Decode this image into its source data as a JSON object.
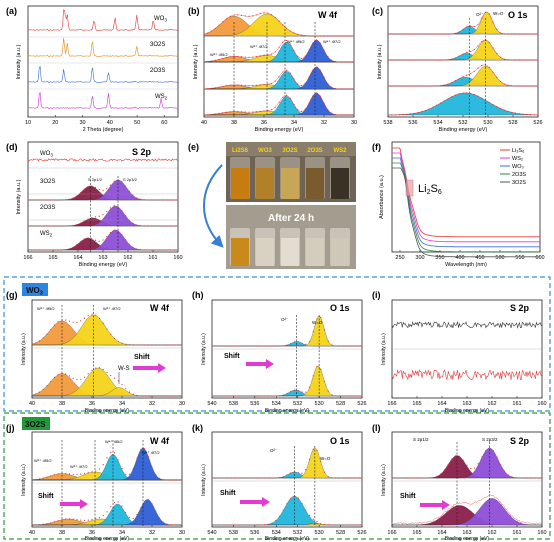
{
  "colors": {
    "orange": "#f39a3c",
    "yellow": "#f5d31b",
    "cyan": "#21b7dd",
    "blue": "#2f5fd6",
    "purple": "#8f4fd8",
    "maroon": "#8c1f4a",
    "magenta": "#e13bd1",
    "red": "#e23a3a",
    "wo3_badge": "#2b86e0",
    "o2s_badge": "#1e9a3b",
    "dashed_blue": "#3a8fd6",
    "dashed_green": "#2f9a3e"
  },
  "panels": {
    "a": {
      "tag": "(a)",
      "xlabel": "2 Theta (degree)",
      "ylabel": "Intensity (a.u.)",
      "ticks": [
        "10",
        "20",
        "30",
        "40",
        "50",
        "60"
      ]
    },
    "b": {
      "tag": "(b)",
      "title": "W 4f",
      "xlabel": "Binding energy (eV)",
      "ylabel": "Intensity (a.u.)",
      "ticks": [
        "40",
        "38",
        "36",
        "34",
        "32",
        "30"
      ],
      "ann_w4f52": "W⁶⁺ 4f5/2",
      "ann_w4f72": "W⁶⁺ 4f7/2",
      "ann_w4f52b": "W⁴⁺ 4f5/2",
      "ann_w4f72b": "W⁴⁺ 4f7/2"
    },
    "c": {
      "tag": "(c)",
      "title": "O 1s",
      "xlabel": "Binding energy (eV)",
      "ylabel": "Intensity (a.u.)",
      "ticks": [
        "538",
        "536",
        "534",
        "532",
        "530",
        "528",
        "526"
      ],
      "ann_o2": "O²⁻",
      "ann_wo": "W=O"
    },
    "d": {
      "tag": "(d)",
      "title": "S 2p",
      "xlabel": "Binding energy (eV)",
      "ylabel": "Intensity (a.u.)",
      "ticks": [
        "166",
        "165",
        "164",
        "163",
        "162",
        "161",
        "160"
      ],
      "ann_s12": "S 2p1/2",
      "ann_s32": "S 2p3/2"
    },
    "e": {
      "tag": "(e)",
      "top_labels": [
        "Li2S6",
        "WO3",
        "3O2S",
        "2O3S",
        "WS2"
      ],
      "bottom_label": "After 24 h"
    },
    "f": {
      "tag": "(f)",
      "xlabel": "Wavelength (nm)",
      "ylabel": "Absorbance (a.u.)",
      "ticks": [
        "250",
        "300",
        "350",
        "400",
        "450",
        "500",
        "550",
        "600"
      ],
      "annotation": "Li2S6"
    },
    "g": {
      "tag": "(g)",
      "title": "W 4f",
      "badge": "WO3",
      "xlabel": "Binding energy (eV)",
      "ylabel": "Intensity (a.u.)",
      "ticks": [
        "40",
        "38",
        "36",
        "34",
        "32",
        "30"
      ],
      "ann_a": "W⁶⁺ 4f5/2",
      "ann_b": "W⁶⁺ 4f7/2",
      "ann_ws": "W-S",
      "shift": "Shift"
    },
    "h": {
      "tag": "(h)",
      "title": "O 1s",
      "xlabel": "Binding energy (eV)",
      "ylabel": "Intensity (a.u.)",
      "ticks": [
        "540",
        "538",
        "536",
        "534",
        "532",
        "530",
        "528",
        "526"
      ],
      "ann_o2": "O²⁻",
      "ann_wo": "W=O",
      "shift": "Shift"
    },
    "i": {
      "tag": "(i)",
      "title": "S 2p",
      "xlabel": "Binding energy (eV)",
      "ylabel": "Intensity (a.u.)",
      "ticks": [
        "166",
        "165",
        "164",
        "163",
        "162",
        "161",
        "160"
      ]
    },
    "j": {
      "tag": "(j)",
      "title": "W 4f",
      "badge": "3O2S",
      "xlabel": "Binding energy (eV)",
      "ylabel": "Intensity (a.u.)",
      "ticks": [
        "40",
        "38",
        "36",
        "34",
        "32",
        "30"
      ],
      "ann_a": "W⁶⁺ 4f5/2",
      "ann_b": "W⁶⁺ 4f7/2",
      "ann_c": "W⁴⁺ 4f5/2",
      "ann_d": "W⁴⁺ 4f7/2",
      "shift": "Shift"
    },
    "k": {
      "tag": "(k)",
      "title": "O 1s",
      "xlabel": "Binding energy (eV)",
      "ylabel": "Intensity (a.u.)",
      "ticks": [
        "540",
        "538",
        "536",
        "534",
        "532",
        "530",
        "528",
        "526"
      ],
      "ann_o2": "O²⁻",
      "ann_wo": "W=O",
      "shift": "Shift"
    },
    "l": {
      "tag": "(l)",
      "title": "S 2p",
      "xlabel": "Binding energy (eV)",
      "ylabel": "Intensity (a.u.)",
      "ticks": [
        "166",
        "165",
        "164",
        "163",
        "162",
        "161",
        "160"
      ],
      "ann_s12": "S 2p1/2",
      "ann_s32": "S 2p3/2",
      "shift": "Shift"
    }
  },
  "chart_data": [
    {
      "type": "line",
      "panel": "a",
      "xlabel": "2 Theta (degree)",
      "ylabel": "Intensity (a.u.)",
      "xlim": [
        10,
        65
      ],
      "series": [
        {
          "name": "WO3",
          "peaks": [
            23.1,
            23.6,
            24.4,
            34.2,
            41.9,
            49.9,
            55.9
          ]
        },
        {
          "name": "3O2S",
          "peaks": [
            23.1,
            24.4,
            33.6,
            49.9
          ]
        },
        {
          "name": "2O3S",
          "peaks": [
            14.3,
            23.1,
            33.6,
            39.5
          ]
        },
        {
          "name": "WS2",
          "peaks": [
            14.3,
            33.6,
            39.5,
            58.8
          ]
        }
      ]
    },
    {
      "type": "line",
      "panel": "b",
      "title": "W 4f",
      "xlabel": "Binding energy (eV)",
      "ylabel": "Intensity (a.u.)",
      "xlim": [
        40,
        30
      ],
      "peaks_eV": [
        38.0,
        35.8,
        34.6,
        32.6
      ]
    },
    {
      "type": "line",
      "panel": "c",
      "title": "O 1s",
      "xlabel": "Binding energy (eV)",
      "ylabel": "Intensity (a.u.)",
      "xlim": [
        538,
        526
      ],
      "peaks_eV": [
        531.5,
        530.2
      ]
    },
    {
      "type": "line",
      "panel": "d",
      "title": "S 2p",
      "xlabel": "Binding energy (eV)",
      "ylabel": "Intensity (a.u.)",
      "xlim": [
        166,
        160
      ],
      "series": [
        {
          "name": "WO3"
        },
        {
          "name": "3O2S"
        },
        {
          "name": "2O3S"
        },
        {
          "name": "WS2"
        }
      ],
      "peaks_eV": [
        163.5,
        162.4
      ]
    },
    {
      "type": "line",
      "panel": "f",
      "xlabel": "Wavelength (nm)",
      "ylabel": "Absorbance (a.u.)",
      "xlim": [
        230,
        600
      ],
      "series": [
        {
          "name": "Li2S6"
        },
        {
          "name": "WS2"
        },
        {
          "name": "WO3"
        },
        {
          "name": "2O3S"
        },
        {
          "name": "3O2S"
        }
      ]
    },
    {
      "type": "line",
      "panel": "g",
      "title": "W 4f",
      "xlabel": "Binding energy (eV)",
      "xlim": [
        40,
        30
      ],
      "peaks_eV": [
        38.0,
        35.9
      ]
    },
    {
      "type": "line",
      "panel": "h",
      "title": "O 1s",
      "xlabel": "Binding energy (eV)",
      "xlim": [
        540,
        526
      ],
      "peaks_eV": [
        532.1,
        530.0
      ]
    },
    {
      "type": "line",
      "panel": "i",
      "title": "S 2p",
      "xlabel": "Binding energy (eV)",
      "xlim": [
        166,
        160
      ]
    },
    {
      "type": "line",
      "panel": "j",
      "title": "W 4f",
      "xlabel": "Binding energy (eV)",
      "xlim": [
        40,
        30
      ],
      "peaks_eV": [
        38.0,
        35.8,
        34.6,
        32.6
      ]
    },
    {
      "type": "line",
      "panel": "k",
      "title": "O 1s",
      "xlabel": "Binding energy (eV)",
      "xlim": [
        540,
        526
      ],
      "peaks_eV": [
        532.3,
        530.4
      ]
    },
    {
      "type": "line",
      "panel": "l",
      "title": "S 2p",
      "xlabel": "Binding energy (eV)",
      "xlim": [
        166,
        160
      ],
      "peaks_eV": [
        163.4,
        162.1
      ]
    }
  ]
}
